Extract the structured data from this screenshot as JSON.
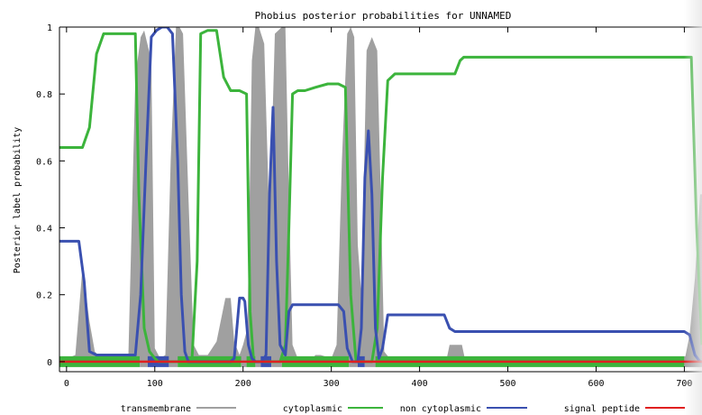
{
  "chart_data": {
    "type": "area",
    "title": "Phobius posterior probabilities for UNNAMED",
    "xlabel": "",
    "ylabel": "Posterior label probability",
    "xlim": [
      -8,
      720
    ],
    "ylim": [
      -0.03,
      1.0
    ],
    "xticks": [
      0,
      100,
      200,
      300,
      400,
      500,
      600,
      700
    ],
    "yticks": [
      0,
      0.2,
      0.4,
      0.6,
      0.8,
      1
    ],
    "ytick_labels": [
      "0",
      "0.2",
      "0.4",
      "0.6",
      "0.8",
      "1"
    ],
    "grid": false,
    "legend_position": "bottom",
    "legend": [
      {
        "label": "transmembrane",
        "color": "#a0a0a0"
      },
      {
        "label": "cytoplasmic",
        "color": "#3cb43c"
      },
      {
        "label": "non cytoplasmic",
        "color": "#3a50b0"
      },
      {
        "label": "signal peptide",
        "color": "#e02020"
      }
    ],
    "series": [
      {
        "name": "transmembrane",
        "kind": "area",
        "color": "#a0a0a0",
        "x": [
          -8,
          10,
          18,
          26,
          32,
          40,
          48,
          70,
          78,
          84,
          88,
          96,
          100,
          106,
          112,
          118,
          124,
          128,
          132,
          138,
          144,
          150,
          160,
          170,
          180,
          186,
          190,
          196,
          200,
          205,
          210,
          214,
          218,
          224,
          230,
          236,
          244,
          248,
          252,
          256,
          262,
          268,
          276,
          282,
          288,
          300,
          306,
          312,
          318,
          322,
          326,
          330,
          334,
          340,
          346,
          352,
          356,
          360,
          366,
          370,
          430,
          434,
          440,
          448,
          452,
          700,
          706,
          712,
          718,
          720
        ],
        "y": [
          0,
          0.02,
          0.28,
          0.12,
          0.03,
          0.01,
          0,
          0.01,
          0.85,
          0.97,
          0.99,
          0.9,
          0.04,
          0.01,
          0.02,
          0.6,
          1.0,
          1.0,
          0.98,
          0.5,
          0.05,
          0.02,
          0.02,
          0.06,
          0.19,
          0.19,
          0.06,
          0.02,
          0.05,
          0.1,
          0.9,
          1.0,
          1.0,
          0.95,
          0.4,
          0.98,
          1.0,
          1.0,
          0.5,
          0.05,
          0.01,
          0.01,
          0,
          0.02,
          0.02,
          0.01,
          0.05,
          0.6,
          0.98,
          1.0,
          0.97,
          0.35,
          0.2,
          0.93,
          0.97,
          0.93,
          0.5,
          0.03,
          0.01,
          0,
          0,
          0.05,
          0.05,
          0.05,
          0,
          0,
          0.08,
          0.25,
          0.5,
          0.5
        ]
      },
      {
        "name": "cytoplasmic",
        "kind": "line",
        "color": "#3cb43c",
        "x": [
          -8,
          5,
          18,
          26,
          34,
          42,
          50,
          60,
          70,
          78,
          82,
          88,
          94,
          100,
          104,
          108,
          112,
          118,
          130,
          142,
          148,
          152,
          160,
          166,
          170,
          178,
          186,
          192,
          196,
          204,
          208,
          212,
          218,
          226,
          234,
          242,
          248,
          252,
          256,
          262,
          270,
          282,
          296,
          308,
          316,
          322,
          328,
          334,
          340,
          346,
          352,
          358,
          364,
          372,
          382,
          400,
          420,
          440,
          446,
          450,
          500,
          600,
          700,
          708,
          714,
          720
        ],
        "y": [
          0.64,
          0.64,
          0.64,
          0.7,
          0.92,
          0.98,
          0.98,
          0.98,
          0.98,
          0.98,
          0.5,
          0.1,
          0.03,
          0.01,
          0,
          0,
          0,
          0,
          0,
          0,
          0.3,
          0.98,
          0.99,
          0.99,
          0.99,
          0.85,
          0.81,
          0.81,
          0.81,
          0.8,
          0.15,
          0,
          0,
          0,
          0,
          0,
          0.05,
          0.4,
          0.8,
          0.81,
          0.81,
          0.82,
          0.83,
          0.83,
          0.82,
          0.2,
          0,
          0,
          0,
          0,
          0.1,
          0.55,
          0.84,
          0.86,
          0.86,
          0.86,
          0.86,
          0.86,
          0.9,
          0.91,
          0.91,
          0.91,
          0.91,
          0.91,
          0.4,
          0.05
        ]
      },
      {
        "name": "non cytoplasmic",
        "kind": "line",
        "color": "#3a50b0",
        "x": [
          -8,
          6,
          14,
          20,
          26,
          34,
          40,
          50,
          60,
          70,
          78,
          84,
          90,
          96,
          102,
          108,
          114,
          120,
          126,
          130,
          134,
          138,
          146,
          160,
          180,
          186,
          190,
          196,
          200,
          202,
          206,
          210,
          214,
          218,
          222,
          226,
          230,
          234,
          238,
          242,
          248,
          252,
          256,
          260,
          270,
          282,
          292,
          300,
          308,
          314,
          318,
          324,
          330,
          334,
          338,
          342,
          346,
          350,
          354,
          358,
          364,
          372,
          382,
          392,
          406,
          420,
          428,
          434,
          440,
          450,
          500,
          600,
          700,
          706,
          712,
          718,
          720
        ],
        "y": [
          0.36,
          0.36,
          0.36,
          0.24,
          0.03,
          0.02,
          0.02,
          0.02,
          0.02,
          0.02,
          0.02,
          0.2,
          0.6,
          0.97,
          0.99,
          1.0,
          1.0,
          0.98,
          0.6,
          0.2,
          0.03,
          0,
          0,
          0,
          0,
          0,
          0.01,
          0.19,
          0.19,
          0.18,
          0.05,
          0.01,
          0,
          0,
          0,
          0.02,
          0.5,
          0.76,
          0.3,
          0.05,
          0.02,
          0.15,
          0.17,
          0.17,
          0.17,
          0.17,
          0.17,
          0.17,
          0.17,
          0.15,
          0.04,
          0,
          0,
          0.1,
          0.55,
          0.69,
          0.5,
          0.1,
          0.01,
          0.04,
          0.14,
          0.14,
          0.14,
          0.14,
          0.14,
          0.14,
          0.14,
          0.1,
          0.09,
          0.09,
          0.09,
          0.09,
          0.09,
          0.08,
          0.02,
          0,
          0
        ]
      },
      {
        "name": "signal peptide",
        "kind": "line",
        "color": "#e02020",
        "x": [
          -8,
          720
        ],
        "y": [
          0,
          0
        ]
      }
    ],
    "topology_bar": [
      {
        "start": -8,
        "end": 83,
        "label": "cytoplasmic",
        "color": "#3cb43c"
      },
      {
        "start": 83,
        "end": 92,
        "label": "transmembrane",
        "color": "#a0a0a0"
      },
      {
        "start": 92,
        "end": 116,
        "label": "non cytoplasmic",
        "color": "#3a50b0"
      },
      {
        "start": 116,
        "end": 126,
        "label": "transmembrane",
        "color": "#a0a0a0"
      },
      {
        "start": 126,
        "end": 198,
        "label": "cytoplasmic",
        "color": "#3cb43c"
      },
      {
        "start": 198,
        "end": 204,
        "label": "transmembrane",
        "color": "#a0a0a0"
      },
      {
        "start": 204,
        "end": 214,
        "label": "cytoplasmic",
        "color": "#3cb43c"
      },
      {
        "start": 214,
        "end": 220,
        "label": "transmembrane",
        "color": "#a0a0a0"
      },
      {
        "start": 220,
        "end": 232,
        "label": "non cytoplasmic",
        "color": "#3a50b0"
      },
      {
        "start": 232,
        "end": 244,
        "label": "transmembrane",
        "color": "#a0a0a0"
      },
      {
        "start": 244,
        "end": 320,
        "label": "cytoplasmic",
        "color": "#3cb43c"
      },
      {
        "start": 320,
        "end": 330,
        "label": "transmembrane",
        "color": "#a0a0a0"
      },
      {
        "start": 330,
        "end": 338,
        "label": "non cytoplasmic",
        "color": "#3a50b0"
      },
      {
        "start": 338,
        "end": 350,
        "label": "transmembrane",
        "color": "#a0a0a0"
      },
      {
        "start": 350,
        "end": 700,
        "label": "cytoplasmic",
        "color": "#3cb43c"
      },
      {
        "start": 700,
        "end": 720,
        "label": "transmembrane",
        "color": "#a0a0a0"
      }
    ]
  }
}
